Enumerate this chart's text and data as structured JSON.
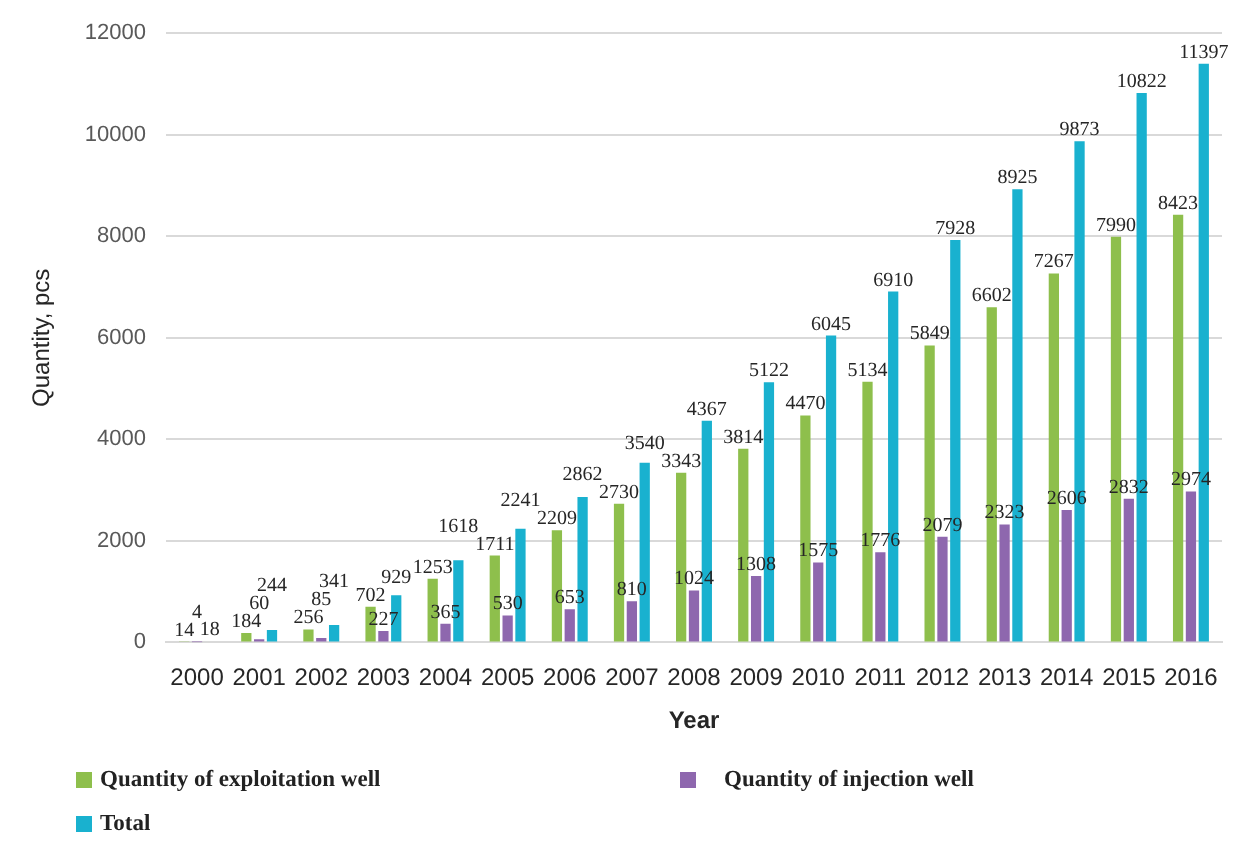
{
  "chart_data": {
    "type": "bar",
    "xlabel": "Year",
    "ylabel": "Quantity, pcs",
    "categories": [
      "2000",
      "2001",
      "2002",
      "2003",
      "2004",
      "2005",
      "2006",
      "2007",
      "2008",
      "2009",
      "2010",
      "2011",
      "2012",
      "2013",
      "2014",
      "2015",
      "2016"
    ],
    "series": [
      {
        "name": "Quantity of exploitation well",
        "color": "#8ebf4c",
        "values": [
          14,
          184,
          256,
          702,
          1253,
          1711,
          2209,
          2730,
          3343,
          3814,
          4470,
          5134,
          5849,
          6602,
          7267,
          7990,
          8423
        ]
      },
      {
        "name": "Quantity of injection well",
        "color": "#8e67ae",
        "values": [
          4,
          60,
          85,
          227,
          365,
          530,
          653,
          810,
          1024,
          1308,
          1575,
          1776,
          2079,
          2323,
          2606,
          2832,
          2974
        ]
      },
      {
        "name": "Total",
        "color": "#19b1cf",
        "values": [
          18,
          244,
          341,
          929,
          1618,
          2241,
          2862,
          3540,
          4367,
          5122,
          6045,
          6910,
          7928,
          8925,
          9873,
          10822,
          11397
        ]
      }
    ],
    "ylim": [
      0,
      12000
    ],
    "yticks": [
      0,
      2000,
      4000,
      6000,
      8000,
      10000,
      12000
    ],
    "grid": "y",
    "legend": "bottom",
    "data_labels": true
  }
}
